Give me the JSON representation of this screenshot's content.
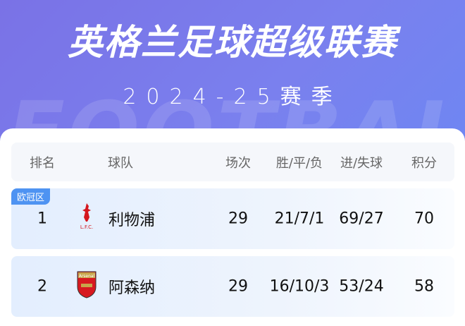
{
  "header": {
    "title": "英格兰足球超级联赛",
    "season": "2024-25赛季",
    "watermark": "FOOTBALL"
  },
  "table": {
    "columns": [
      "排名",
      "球队",
      "场次",
      "胜/平/负",
      "进/失球",
      "积分"
    ],
    "rows": [
      {
        "badge": "欧冠区",
        "rank": "1",
        "team": "利物浦",
        "logo": "liverpool-crest",
        "logo_text": "L.F.C.",
        "played": "29",
        "record": "21/7/1",
        "goals": "69/27",
        "points": "70"
      },
      {
        "badge": "",
        "rank": "2",
        "team": "阿森纳",
        "logo": "arsenal-crest",
        "logo_text": "Arsenal",
        "played": "29",
        "record": "16/10/3",
        "goals": "53/24",
        "points": "58"
      }
    ]
  }
}
